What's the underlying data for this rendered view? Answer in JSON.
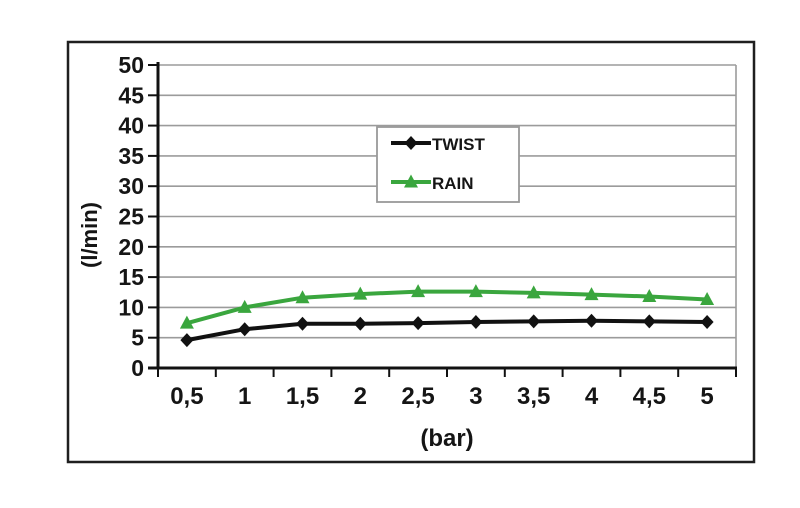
{
  "page": {
    "background": "#ffffff"
  },
  "figure": {
    "background": "#ffffff",
    "border_color": "#1f1f1f"
  },
  "chart_data": {
    "type": "line",
    "title": "",
    "xlabel": "(bar)",
    "ylabel": "(l/min)",
    "categories": [
      "0,5",
      "1",
      "1,5",
      "2",
      "2,5",
      "3",
      "3,5",
      "4",
      "4,5",
      "5"
    ],
    "x_numeric": [
      0.5,
      1,
      1.5,
      2,
      2.5,
      3,
      3.5,
      4,
      4.5,
      5
    ],
    "ylim": [
      0,
      50
    ],
    "ytick_step": 5,
    "ytick_labels": [
      "0",
      "5",
      "10",
      "15",
      "20",
      "25",
      "30",
      "35",
      "40",
      "45",
      "50"
    ],
    "grid": "horizontal",
    "grid_color": "#9b9b9b",
    "axis_color": "#111111",
    "legend": {
      "position": "upper-center",
      "background": "#ffffff",
      "border_color": "#999999"
    },
    "series": [
      {
        "name": "TWIST",
        "color": "#111111",
        "marker": "diamond",
        "values": [
          4.6,
          6.4,
          7.3,
          7.3,
          7.4,
          7.6,
          7.7,
          7.8,
          7.7,
          7.6
        ]
      },
      {
        "name": "RAIN",
        "color": "#3aa63e",
        "marker": "triangle-up",
        "values": [
          7.4,
          10.0,
          11.6,
          12.2,
          12.6,
          12.6,
          12.4,
          12.1,
          11.8,
          11.3
        ]
      }
    ]
  }
}
